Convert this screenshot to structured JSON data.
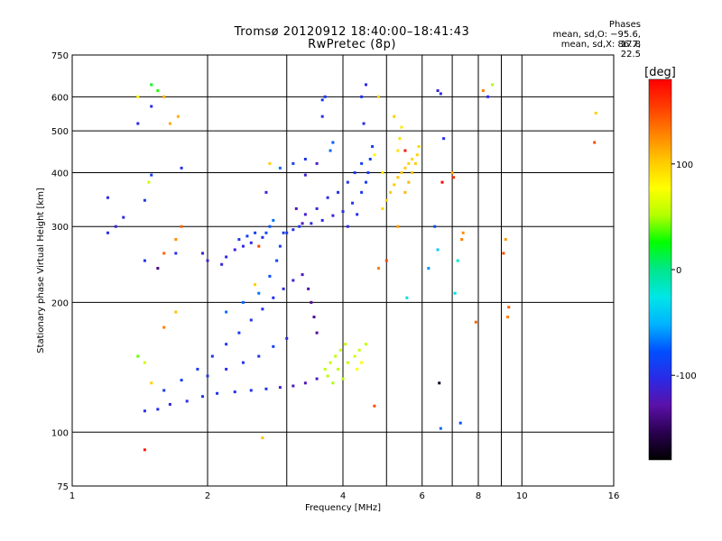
{
  "header": {
    "title_line1": "Tromsø 20120912 18:40:00–18:41:43",
    "title_line2": "RwPretec (8p)",
    "stats_title": "Phases",
    "stats_o": "mean, sd,O: −95.6, 17.8",
    "stats_x": "mean, sd,X:  86.7, 22.5"
  },
  "chart_data": {
    "type": "scatter",
    "xlabel": "Frequency [MHz]",
    "ylabel": "Stationary phase Virtual Height [km]",
    "x_scale": "log",
    "y_scale": "log",
    "xlim": [
      1,
      16
    ],
    "ylim": [
      75,
      750
    ],
    "x_ticks": [
      1,
      2,
      4,
      6,
      8,
      10,
      16
    ],
    "y_ticks": [
      75,
      100,
      200,
      300,
      400,
      500,
      600,
      750
    ],
    "x_gridlines": [
      2,
      3,
      4,
      5,
      6,
      7,
      8,
      9,
      10
    ],
    "y_gridlines": [
      100,
      200,
      300,
      400,
      500,
      600
    ],
    "grid": true,
    "colorbar": {
      "label": "[deg]",
      "range": [
        -180,
        180
      ],
      "ticks": [
        100,
        0,
        -100
      ],
      "colors": [
        "#000000",
        "#2a0050",
        "#5b10a8",
        "#2a2ae6",
        "#0050ff",
        "#00b4ff",
        "#00e6e6",
        "#00e68c",
        "#00ff00",
        "#b4ff00",
        "#ffff00",
        "#ffc800",
        "#ff8200",
        "#ff3c00",
        "#ff0000"
      ]
    },
    "series": [
      {
        "values": [
          [
            1.45,
            112,
            -98
          ],
          [
            1.55,
            113,
            -102
          ],
          [
            1.65,
            116,
            -105
          ],
          [
            1.8,
            118,
            -100
          ],
          [
            1.95,
            121,
            -96
          ],
          [
            2.1,
            123,
            -99
          ],
          [
            2.3,
            124,
            -101
          ],
          [
            2.5,
            125,
            -98
          ],
          [
            2.7,
            126,
            -95
          ],
          [
            2.9,
            127,
            -110
          ],
          [
            3.1,
            128,
            -120
          ],
          [
            3.3,
            130,
            -125
          ],
          [
            3.5,
            133,
            -118
          ],
          [
            1.6,
            125,
            -92
          ],
          [
            1.75,
            132,
            -90
          ],
          [
            1.9,
            140,
            -94
          ],
          [
            2.05,
            150,
            -97
          ],
          [
            2.2,
            160,
            -95
          ],
          [
            2.35,
            170,
            -93
          ],
          [
            2.5,
            182,
            -96
          ],
          [
            2.65,
            193,
            -99
          ],
          [
            2.8,
            205,
            -100
          ],
          [
            2.95,
            215,
            -105
          ],
          [
            3.1,
            225,
            -112
          ],
          [
            3.25,
            232,
            -120
          ],
          [
            3.35,
            215,
            -130
          ],
          [
            3.4,
            200,
            -135
          ],
          [
            3.45,
            185,
            -138
          ],
          [
            3.5,
            170,
            -135
          ],
          [
            2.0,
            135,
            -98
          ],
          [
            2.2,
            140,
            -100
          ],
          [
            2.4,
            145,
            -97
          ],
          [
            2.6,
            150,
            -95
          ],
          [
            2.8,
            158,
            -92
          ],
          [
            3.0,
            165,
            -105
          ],
          [
            2.75,
            230,
            -80
          ],
          [
            2.85,
            250,
            -85
          ],
          [
            2.9,
            270,
            -88
          ],
          [
            3.0,
            290,
            -90
          ],
          [
            3.2,
            300,
            -95
          ],
          [
            3.4,
            305,
            -100
          ],
          [
            3.6,
            310,
            -105
          ],
          [
            3.8,
            318,
            -108
          ],
          [
            4.0,
            325,
            -100
          ],
          [
            4.2,
            340,
            -98
          ],
          [
            4.4,
            360,
            -95
          ],
          [
            4.5,
            380,
            -92
          ],
          [
            4.55,
            400,
            -90
          ],
          [
            4.6,
            430,
            -88
          ],
          [
            4.65,
            460,
            -90
          ],
          [
            4.1,
            300,
            -105
          ],
          [
            4.3,
            320,
            -100
          ],
          [
            2.7,
            290,
            -80
          ],
          [
            2.75,
            300,
            -75
          ],
          [
            2.8,
            310,
            -70
          ],
          [
            2.95,
            290,
            -95
          ],
          [
            3.1,
            295,
            -100
          ],
          [
            3.5,
            330,
            -110
          ],
          [
            3.7,
            350,
            -105
          ],
          [
            3.9,
            360,
            -100
          ],
          [
            4.1,
            380,
            -95
          ],
          [
            4.25,
            400,
            -92
          ],
          [
            4.4,
            420,
            -90
          ],
          [
            3.75,
            450,
            -70
          ],
          [
            3.8,
            470,
            -75
          ],
          [
            3.3,
            395,
            -110
          ],
          [
            3.5,
            420,
            -115
          ],
          [
            3.6,
            540,
            -100
          ],
          [
            3.65,
            600,
            -95
          ],
          [
            4.4,
            600,
            -98
          ],
          [
            4.5,
            640,
            -102
          ],
          [
            4.45,
            520,
            -100
          ],
          [
            2.3,
            265,
            -110
          ],
          [
            2.4,
            270,
            -105
          ],
          [
            2.5,
            275,
            -100
          ],
          [
            4.9,
            330,
            95
          ],
          [
            5.0,
            345,
            98
          ],
          [
            5.1,
            360,
            100
          ],
          [
            5.2,
            375,
            102
          ],
          [
            5.3,
            390,
            105
          ],
          [
            5.4,
            400,
            103
          ],
          [
            5.5,
            410,
            100
          ],
          [
            5.6,
            420,
            98
          ],
          [
            5.7,
            430,
            96
          ],
          [
            5.5,
            360,
            110
          ],
          [
            5.6,
            380,
            108
          ],
          [
            5.7,
            400,
            105
          ],
          [
            5.8,
            420,
            100
          ],
          [
            5.85,
            440,
            98
          ],
          [
            5.9,
            460,
            95
          ],
          [
            5.3,
            450,
            90
          ],
          [
            5.35,
            480,
            92
          ],
          [
            5.4,
            510,
            88
          ],
          [
            5.2,
            540,
            100
          ],
          [
            4.8,
            600,
            100
          ],
          [
            4.7,
            440,
            80
          ],
          [
            4.9,
            400,
            85
          ],
          [
            3.65,
            140,
            55
          ],
          [
            3.75,
            145,
            57
          ],
          [
            3.85,
            150,
            55
          ],
          [
            3.95,
            155,
            58
          ],
          [
            4.05,
            160,
            55
          ],
          [
            3.7,
            135,
            52
          ],
          [
            3.9,
            140,
            56
          ],
          [
            4.1,
            145,
            57
          ],
          [
            4.25,
            150,
            60
          ],
          [
            4.35,
            155,
            58
          ],
          [
            4.5,
            160,
            55
          ],
          [
            4.3,
            140,
            75
          ],
          [
            4.4,
            145,
            78
          ],
          [
            3.8,
            130,
            50
          ],
          [
            4.0,
            133,
            52
          ],
          [
            2.2,
            190,
            -70
          ],
          [
            2.4,
            200,
            -72
          ],
          [
            2.6,
            210,
            -68
          ],
          [
            1.2,
            290,
            -100
          ],
          [
            1.3,
            315,
            -105
          ],
          [
            1.45,
            250,
            -98
          ],
          [
            1.55,
            240,
            -140
          ],
          [
            1.7,
            260,
            -100
          ],
          [
            1.45,
            345,
            -95
          ],
          [
            1.5,
            395,
            -90
          ],
          [
            1.4,
            520,
            -105
          ],
          [
            1.5,
            570,
            -100
          ],
          [
            1.6,
            260,
            140
          ],
          [
            1.4,
            150,
            40
          ],
          [
            1.45,
            145,
            60
          ],
          [
            1.5,
            130,
            100
          ],
          [
            1.6,
            175,
            130
          ],
          [
            1.7,
            190,
            105
          ],
          [
            1.75,
            410,
            -98
          ],
          [
            1.7,
            280,
            125
          ],
          [
            1.75,
            300,
            140
          ],
          [
            1.6,
            600,
            110
          ],
          [
            1.4,
            600,
            80
          ],
          [
            1.65,
            520,
            115
          ],
          [
            1.5,
            640,
            20
          ],
          [
            1.55,
            620,
            30
          ],
          [
            1.48,
            380,
            60
          ],
          [
            1.72,
            540,
            112
          ],
          [
            1.45,
            91,
            170
          ],
          [
            2.65,
            97,
            105
          ],
          [
            2.6,
            270,
            150
          ],
          [
            2.55,
            220,
            100
          ],
          [
            2.75,
            420,
            100
          ],
          [
            2.9,
            410,
            -70
          ],
          [
            3.1,
            420,
            -90
          ],
          [
            3.3,
            430,
            -95
          ],
          [
            2.7,
            360,
            -110
          ],
          [
            3.6,
            590,
            -95
          ],
          [
            4.7,
            115,
            150
          ],
          [
            4.8,
            240,
            130
          ],
          [
            5.0,
            250,
            150
          ],
          [
            5.3,
            300,
            120
          ],
          [
            5.5,
            450,
            170
          ],
          [
            5.55,
            205,
            -30
          ],
          [
            6.2,
            240,
            -60
          ],
          [
            6.4,
            300,
            -80
          ],
          [
            6.5,
            265,
            -40
          ],
          [
            6.55,
            130,
            -170
          ],
          [
            6.6,
            102,
            -70
          ],
          [
            6.65,
            380,
            180
          ],
          [
            6.7,
            480,
            -100
          ],
          [
            7.0,
            400,
            115
          ],
          [
            7.05,
            390,
            160
          ],
          [
            7.1,
            210,
            -30
          ],
          [
            7.2,
            250,
            -20
          ],
          [
            7.3,
            105,
            -80
          ],
          [
            7.35,
            280,
            130
          ],
          [
            7.4,
            290,
            125
          ],
          [
            8.4,
            600,
            -100
          ],
          [
            8.6,
            640,
            50
          ],
          [
            8.2,
            620,
            130
          ],
          [
            9.1,
            260,
            150
          ],
          [
            9.2,
            280,
            120
          ],
          [
            9.3,
            185,
            130
          ],
          [
            9.35,
            195,
            140
          ],
          [
            7.9,
            180,
            140
          ],
          [
            14.5,
            470,
            150
          ],
          [
            14.6,
            550,
            100
          ],
          [
            6.5,
            620,
            -110
          ],
          [
            6.6,
            610,
            -100
          ],
          [
            1.2,
            350,
            -105
          ],
          [
            1.25,
            300,
            -108
          ],
          [
            2.0,
            250,
            -110
          ],
          [
            2.2,
            255,
            -105
          ],
          [
            2.15,
            245,
            -108
          ],
          [
            1.95,
            260,
            -112
          ],
          [
            2.35,
            280,
            -95
          ],
          [
            2.45,
            285,
            -92
          ],
          [
            2.55,
            290,
            -88
          ],
          [
            2.65,
            283,
            -100
          ],
          [
            3.15,
            330,
            -120
          ],
          [
            3.3,
            320,
            -115
          ],
          [
            3.25,
            305,
            -122
          ]
        ]
      }
    ]
  }
}
